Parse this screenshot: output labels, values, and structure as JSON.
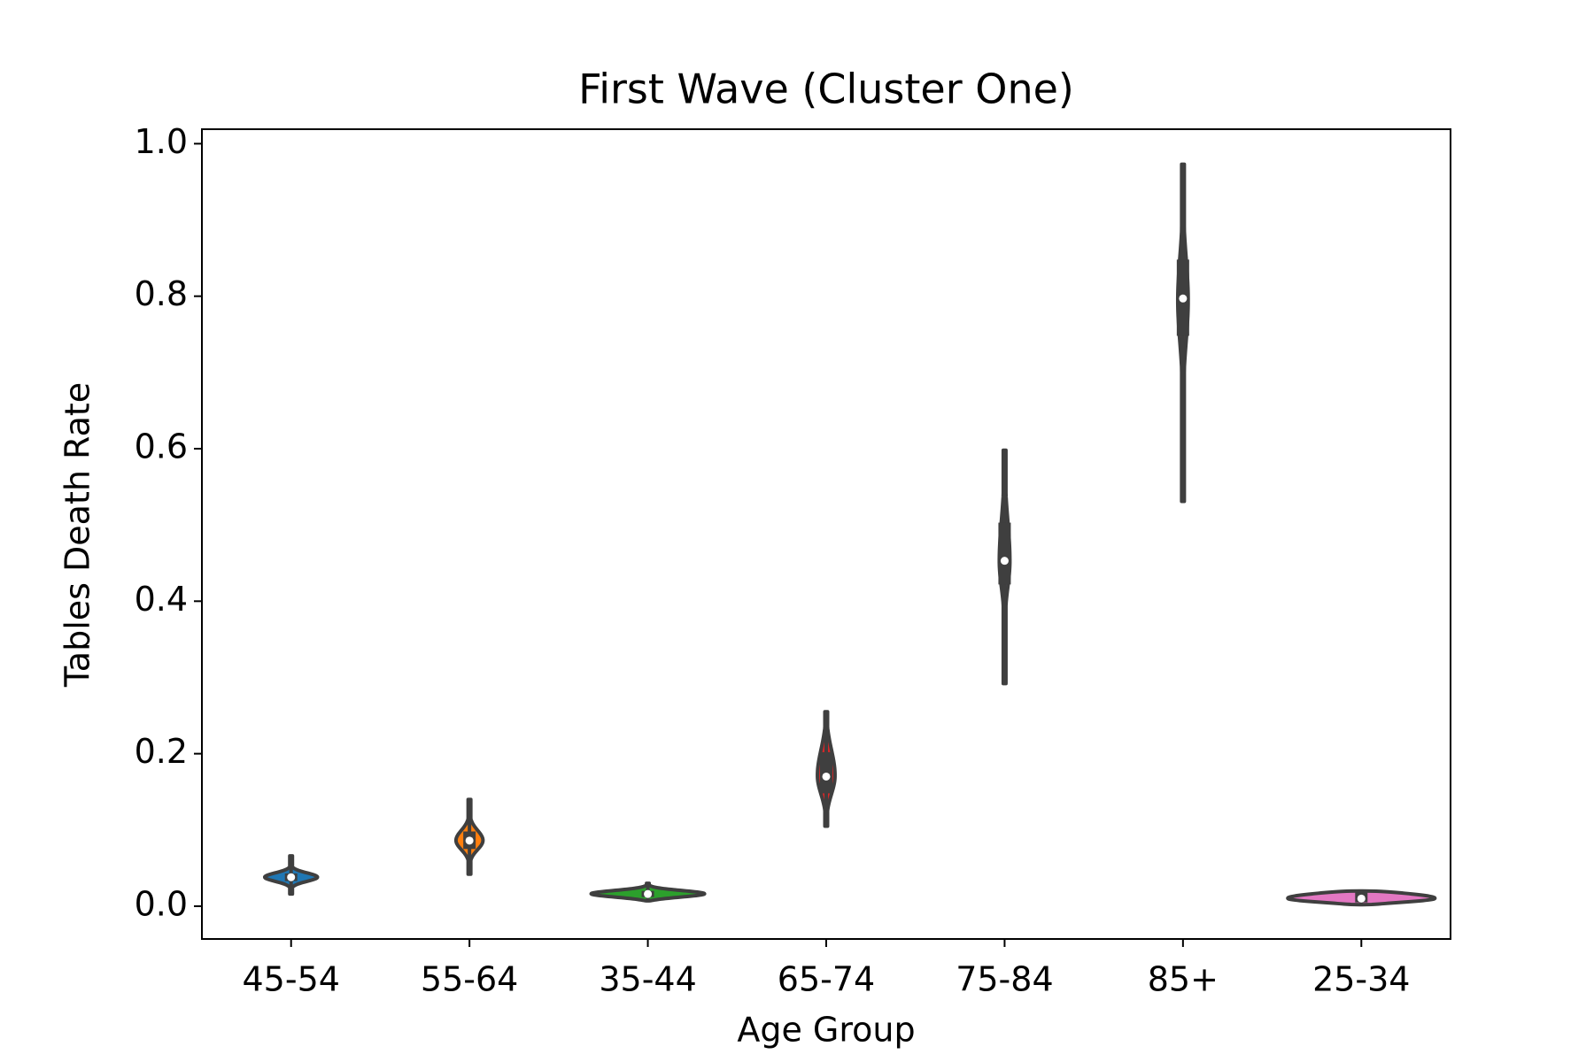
{
  "chart_data": {
    "type": "violin",
    "title": "First Wave (Cluster One)",
    "x_label": "Age Group",
    "y_label": "Tables Death Rate",
    "categories": [
      "45-54",
      "55-64",
      "35-44",
      "65-74",
      "75-84",
      "85+",
      "25-34"
    ],
    "colors": [
      "#1f77b4",
      "#ff7f0e",
      "#2ca02c",
      "#d62728",
      "#9467bd",
      "#8c564b",
      "#e377c2"
    ],
    "stats": {
      "min": [
        0.016,
        0.042,
        0.007,
        0.105,
        0.292,
        0.531,
        0.002
      ],
      "q1": [
        0.033,
        0.075,
        0.012,
        0.148,
        0.422,
        0.748,
        0.005
      ],
      "median": [
        0.038,
        0.086,
        0.016,
        0.17,
        0.453,
        0.797,
        0.01
      ],
      "q3": [
        0.043,
        0.098,
        0.02,
        0.202,
        0.503,
        0.848,
        0.018
      ],
      "max": [
        0.066,
        0.14,
        0.03,
        0.255,
        0.598,
        0.973,
        0.02
      ]
    },
    "ylim": [
      -0.043,
      1.019
    ],
    "yticks": [
      {
        "value": 0,
        "label": "0.0"
      },
      {
        "value": 0.2,
        "label": "0.2"
      },
      {
        "value": 0.4,
        "label": "0.4"
      },
      {
        "value": 0.6,
        "label": "0.6"
      },
      {
        "value": 0.8,
        "label": "0.8"
      },
      {
        "value": 1,
        "label": "1.0"
      }
    ]
  }
}
